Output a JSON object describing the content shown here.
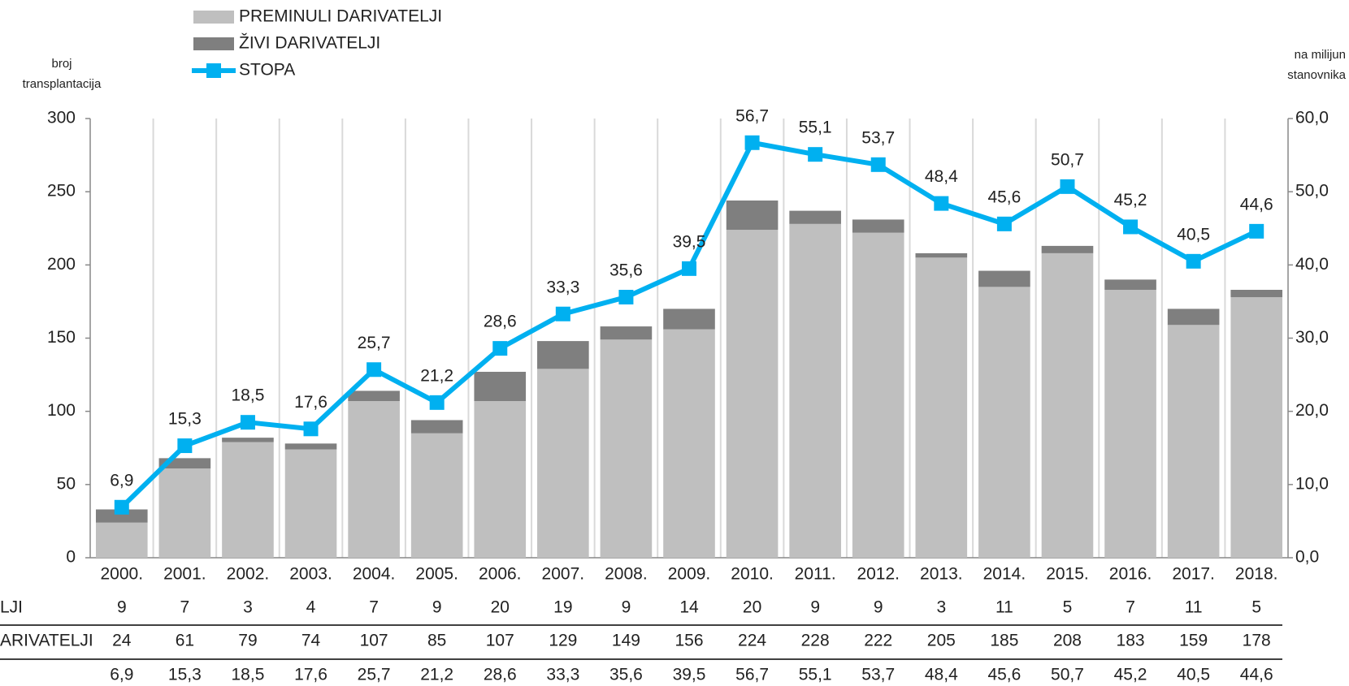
{
  "chart_data": {
    "type": "combo",
    "y_axis_title": [
      "broj",
      "transplantacija"
    ],
    "y2_axis_title": [
      "na milijun",
      "stanovnika"
    ],
    "categories": [
      "2000.",
      "2001.",
      "2002.",
      "2003.",
      "2004.",
      "2005.",
      "2006.",
      "2007.",
      "2008.",
      "2009.",
      "2010.",
      "2011.",
      "2012.",
      "2013.",
      "2014.",
      "2015.",
      "2016.",
      "2017.",
      "2018."
    ],
    "series": [
      {
        "name": "PREMINULI DARIVATELJI",
        "type": "bar",
        "color": "#bfbfbf",
        "values": [
          24,
          61,
          79,
          74,
          107,
          85,
          107,
          129,
          149,
          156,
          224,
          228,
          222,
          205,
          185,
          208,
          183,
          159,
          178
        ]
      },
      {
        "name": "ŽIVI DARIVATELJI",
        "type": "bar",
        "color": "#7f7f7f",
        "values": [
          9,
          7,
          3,
          4,
          7,
          9,
          20,
          19,
          9,
          14,
          20,
          9,
          9,
          3,
          11,
          5,
          7,
          11,
          5
        ]
      },
      {
        "name": "STOPA",
        "type": "line",
        "axis": "y2",
        "color": "#00b0f0",
        "values": [
          6.9,
          15.3,
          18.5,
          17.6,
          25.7,
          21.2,
          28.6,
          33.3,
          35.6,
          39.5,
          56.7,
          55.1,
          53.7,
          48.4,
          45.6,
          50.7,
          45.2,
          40.5,
          44.6
        ],
        "value_labels": [
          "6,9",
          "15,3",
          "18,5",
          "17,6",
          "25,7",
          "21,2",
          "28,6",
          "33,3",
          "35,6",
          "39,5",
          "56,7",
          "55,1",
          "53,7",
          "48,4",
          "45,6",
          "50,7",
          "45,2",
          "40,5",
          "44,6"
        ]
      }
    ],
    "ylim": [
      0,
      300
    ],
    "yticks": [
      0,
      50,
      100,
      150,
      200,
      250,
      300
    ],
    "y2lim": [
      0,
      60
    ],
    "y2ticks": [
      {
        "value": 0,
        "label": "0,0"
      },
      {
        "value": 10,
        "label": "10,0"
      },
      {
        "value": 20,
        "label": "20,0"
      },
      {
        "value": 30,
        "label": "30,0"
      },
      {
        "value": 40,
        "label": "40,0"
      },
      {
        "value": 50,
        "label": "50,0"
      },
      {
        "value": 60,
        "label": "60,0"
      }
    ],
    "table_row_labels": [
      "LJI",
      "ARIVATELJI"
    ]
  }
}
